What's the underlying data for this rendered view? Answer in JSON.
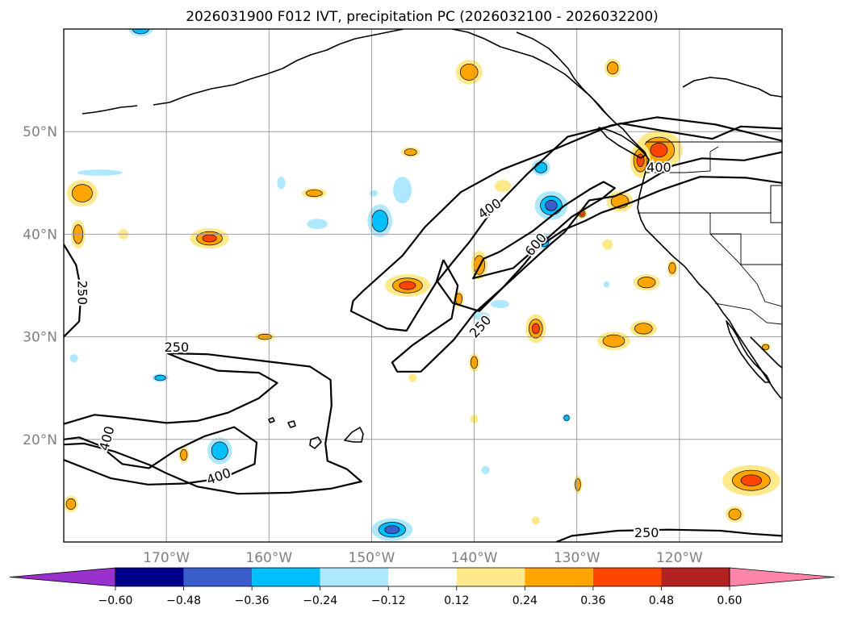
{
  "chart_data": {
    "type": "contour-map",
    "title": "2026031900 F012 IVT, precipitation PC (2026032100 - 2026032200)",
    "projection": "cylindrical",
    "lon_range": [
      -180,
      -110
    ],
    "lat_range": [
      10,
      60
    ],
    "lon_ticks": [
      -170,
      -160,
      -150,
      -140,
      -130,
      -120
    ],
    "lon_tick_labels": [
      "170°W",
      "160°W",
      "150°W",
      "140°W",
      "130°W",
      "120°W"
    ],
    "lat_ticks": [
      20,
      30,
      40,
      50
    ],
    "lat_tick_labels": [
      "20°N",
      "30°N",
      "40°N",
      "50°N"
    ],
    "grid": true,
    "ivt_contours": {
      "levels": [
        250,
        400,
        600
      ],
      "labels": [
        {
          "text": "250",
          "lon": -178.2,
          "lat": 34.3,
          "rot": 90
        },
        {
          "text": "250",
          "lon": -169.0,
          "lat": 29.0,
          "rot": 0
        },
        {
          "text": "400",
          "lon": -175.8,
          "lat": 20.1,
          "rot": -75
        },
        {
          "text": "400",
          "lon": -164.9,
          "lat": 16.4,
          "rot": -20
        },
        {
          "text": "400",
          "lon": -138.5,
          "lat": 42.5,
          "rot": -35
        },
        {
          "text": "600",
          "lon": -134.0,
          "lat": 39.0,
          "rot": -50
        },
        {
          "text": "250",
          "lon": -139.4,
          "lat": 31.0,
          "rot": -48
        },
        {
          "text": "400",
          "lon": -122.0,
          "lat": 46.5,
          "rot": 0
        },
        {
          "text": "250",
          "lon": -123.2,
          "lat": 10.9,
          "rot": 0
        }
      ],
      "lines": [
        {
          "level": 250,
          "points": [
            [
              -180,
              39
            ],
            [
              -178.8,
              37
            ],
            [
              -178.3,
              34.5
            ],
            [
              -178.5,
              31.5
            ],
            [
              -180,
              30
            ]
          ]
        },
        {
          "level": 250,
          "points": [
            [
              -169.9,
              28.4
            ],
            [
              -166,
              28.3
            ],
            [
              -161,
              27.7
            ],
            [
              -156,
              27.1
            ],
            [
              -154,
              25.8
            ],
            [
              -153.9,
              23.3
            ],
            [
              -154.5,
              19.6
            ],
            [
              -154.3,
              17.9
            ],
            [
              -152.4,
              17.1
            ],
            [
              -151,
              15.9
            ],
            [
              -154,
              15.2
            ],
            [
              -158,
              14.8
            ],
            [
              -163,
              14.7
            ],
            [
              -167,
              15.4
            ],
            [
              -170,
              16.7
            ],
            [
              -171.6,
              17.5
            ],
            [
              -175,
              18.8
            ],
            [
              -178,
              19.6
            ],
            [
              -180,
              19.5
            ]
          ]
        },
        {
          "level": 250,
          "points": [
            [
              -180,
              21.5
            ],
            [
              -177,
              22.4
            ],
            [
              -174,
              22.1
            ],
            [
              -170,
              21.6
            ],
            [
              -167,
              21.8
            ],
            [
              -164,
              22.6
            ],
            [
              -161,
              24.0
            ],
            [
              -159.2,
              25.5
            ],
            [
              -161,
              26.5
            ],
            [
              -165,
              26.7
            ],
            [
              -168.2,
              27.7
            ],
            [
              -169.9,
              28.4
            ]
          ]
        },
        {
          "level": 400,
          "points": [
            [
              -180,
              18.0
            ],
            [
              -175.4,
              16.2
            ],
            [
              -171.8,
              15.6
            ],
            [
              -168.2,
              15.7
            ],
            [
              -164.6,
              16.2
            ],
            [
              -161.4,
              17.6
            ],
            [
              -161.2,
              19.7
            ],
            [
              -163.4,
              21.2
            ],
            [
              -166.3,
              20.3
            ],
            [
              -169,
              19.0
            ],
            [
              -171.7,
              17.2
            ],
            [
              -174.3,
              17.6
            ],
            [
              -176.5,
              19.4
            ],
            [
              -178.5,
              20.2
            ],
            [
              -180,
              20.0
            ]
          ]
        },
        {
          "level": 250,
          "points": [
            [
              -143,
              37.5
            ],
            [
              -141.6,
              35.0
            ],
            [
              -142.2,
              31.8
            ],
            [
              -146,
              29.2
            ],
            [
              -148,
              27.5
            ],
            [
              -147.5,
              26.6
            ],
            [
              -145.2,
              26.6
            ],
            [
              -142,
              29.7
            ],
            [
              -140,
              32.3
            ],
            [
              -137.2,
              34.8
            ],
            [
              -134.8,
              37.0
            ],
            [
              -132.6,
              39.0
            ],
            [
              -131.2,
              40.2
            ],
            [
              -128.8,
              43.3
            ],
            [
              -126.3,
              43.7
            ],
            [
              -123.4,
              45.0
            ],
            [
              -120.6,
              46.7
            ],
            [
              -117.8,
              47.4
            ],
            [
              -113.7,
              47.2
            ],
            [
              -110,
              48.0
            ]
          ]
        },
        {
          "level": 250,
          "points": [
            [
              -110,
              49.1
            ],
            [
              -116.5,
              50.7
            ],
            [
              -122.2,
              51.4
            ],
            [
              -126.7,
              50.6
            ],
            [
              -131.9,
              48.4
            ],
            [
              -137.3,
              46.3
            ],
            [
              -141.3,
              44.1
            ],
            [
              -144.8,
              40.7
            ],
            [
              -147,
              37.9
            ],
            [
              -150.8,
              34.5
            ],
            [
              -151.8,
              33.5
            ],
            [
              -152,
              32.5
            ],
            [
              -150.2,
              31.6
            ],
            [
              -148.5,
              30.8
            ],
            [
              -146.6,
              30.6
            ],
            [
              -145.5,
              32.4
            ],
            [
              -143.7,
              35.3
            ],
            [
              -143,
              37.5
            ]
          ]
        },
        {
          "level": 400,
          "points": [
            [
              -143.6,
              35.4
            ],
            [
              -142.1,
              33.3
            ],
            [
              -139.5,
              32.5
            ],
            [
              -137.2,
              34.8
            ],
            [
              -135.2,
              37.0
            ],
            [
              -133.8,
              38.7
            ],
            [
              -131.3,
              40.4
            ],
            [
              -129.2,
              41.3
            ],
            [
              -127.6,
              42.1
            ],
            [
              -124.7,
              43.1
            ],
            [
              -121.8,
              44.3
            ],
            [
              -118,
              45.6
            ],
            [
              -113.5,
              45.5
            ],
            [
              -110,
              45.0
            ]
          ]
        },
        {
          "level": 400,
          "points": [
            [
              -110,
              50.3
            ],
            [
              -114,
              50.5
            ],
            [
              -116.8,
              49.3
            ],
            [
              -121.7,
              50.1
            ],
            [
              -125.7,
              50.8
            ],
            [
              -130.9,
              49.5
            ],
            [
              -134.9,
              45.8
            ],
            [
              -138.2,
              42.4
            ],
            [
              -140.5,
              39.2
            ],
            [
              -142,
              37.4
            ],
            [
              -143.6,
              35.4
            ]
          ]
        },
        {
          "level": 600,
          "points": [
            [
              -139.1,
              37.6
            ],
            [
              -140.1,
              35.7
            ],
            [
              -136.2,
              36.7
            ],
            [
              -133.1,
              39.4
            ],
            [
              -130.5,
              41.7
            ],
            [
              -127.5,
              43.5
            ],
            [
              -126.3,
              44.5
            ],
            [
              -127.4,
              45.1
            ],
            [
              -128.7,
              44.4
            ],
            [
              -131.2,
              42.8
            ],
            [
              -134.3,
              40.3
            ],
            [
              -137.5,
              38.3
            ],
            [
              -139.1,
              37.6
            ]
          ]
        },
        {
          "level": 250,
          "points": [
            [
              -132,
              10
            ],
            [
              -130.5,
              10.6
            ],
            [
              -126,
              11.1
            ],
            [
              -121,
              11.2
            ],
            [
              -116,
              11.1
            ],
            [
              -113,
              10.8
            ],
            [
              -110,
              10.6
            ]
          ]
        }
      ]
    },
    "precipitation_pc": {
      "colorbar": {
        "ticks": [
          "−0.60",
          "−0.48",
          "−0.36",
          "−0.24",
          "−0.12",
          "0.12",
          "0.24",
          "0.36",
          "0.48",
          "0.60"
        ],
        "tick_values": [
          -0.6,
          -0.48,
          -0.36,
          -0.24,
          -0.12,
          0.12,
          0.24,
          0.36,
          0.48,
          0.6
        ],
        "colors": [
          "#9932cc",
          "#00008b",
          "#3a5fcd",
          "#00bfff",
          "#ade8ff",
          "#ffffff",
          "#ffe98a",
          "#ffa500",
          "#ff4500",
          "#b22222",
          "#ff85a8"
        ],
        "extend": "both"
      },
      "positive_color_steps": [
        "#ffe98a",
        "#ffa500",
        "#ff4500"
      ],
      "negative_color_steps": [
        "#ade8ff",
        "#00bfff",
        "#3a5fcd"
      ],
      "blobs": [
        {
          "lon": -172.5,
          "lat": 60.0,
          "rx": 1.2,
          "ry": 0.7,
          "v": -0.26
        },
        {
          "lon": -126.5,
          "lat": 56.2,
          "rx": 0.8,
          "ry": 0.9,
          "v": 0.3
        },
        {
          "lon": -140.5,
          "lat": 55.8,
          "rx": 1.3,
          "ry": 1.2,
          "v": 0.3
        },
        {
          "lon": -122.0,
          "lat": 48.2,
          "rx": 2.3,
          "ry": 1.9,
          "v": 0.4
        },
        {
          "lon": -123.8,
          "lat": 47.2,
          "rx": 1.0,
          "ry": 1.7,
          "v": 0.37
        },
        {
          "lon": -146.2,
          "lat": 48.0,
          "rx": 0.9,
          "ry": 0.5,
          "v": 0.32
        },
        {
          "lon": -133.5,
          "lat": 46.5,
          "rx": 0.9,
          "ry": 0.8,
          "v": -0.3
        },
        {
          "lon": -147.0,
          "lat": 44.3,
          "rx": 0.9,
          "ry": 1.3,
          "v": -0.16
        },
        {
          "lon": -137.2,
          "lat": 44.7,
          "rx": 0.8,
          "ry": 0.6,
          "v": 0.22
        },
        {
          "lon": -132.5,
          "lat": 42.8,
          "rx": 1.6,
          "ry": 1.4,
          "v": -0.38
        },
        {
          "lon": -125.8,
          "lat": 43.2,
          "rx": 1.3,
          "ry": 1.0,
          "v": 0.3
        },
        {
          "lon": -178.2,
          "lat": 44.0,
          "rx": 1.5,
          "ry": 1.3,
          "v": 0.3
        },
        {
          "lon": -176.5,
          "lat": 46.0,
          "rx": 2.2,
          "ry": 0.3,
          "v": -0.18
        },
        {
          "lon": -158.8,
          "lat": 45.0,
          "rx": 0.4,
          "ry": 0.6,
          "v": -0.18
        },
        {
          "lon": -155.6,
          "lat": 44.0,
          "rx": 1.2,
          "ry": 0.5,
          "v": 0.3
        },
        {
          "lon": -149.2,
          "lat": 41.3,
          "rx": 1.2,
          "ry": 1.6,
          "v": -0.26
        },
        {
          "lon": -155.3,
          "lat": 41.0,
          "rx": 1.0,
          "ry": 0.5,
          "v": -0.2
        },
        {
          "lon": -149.8,
          "lat": 44.0,
          "rx": 0.4,
          "ry": 0.3,
          "v": -0.18
        },
        {
          "lon": -129.5,
          "lat": 42.0,
          "rx": 0.5,
          "ry": 0.5,
          "v": 0.36
        },
        {
          "lon": -178.6,
          "lat": 40.0,
          "rx": 0.7,
          "ry": 1.4,
          "v": 0.3
        },
        {
          "lon": -174.2,
          "lat": 40.0,
          "rx": 0.5,
          "ry": 0.5,
          "v": 0.2
        },
        {
          "lon": -165.8,
          "lat": 39.6,
          "rx": 1.9,
          "ry": 1.0,
          "v": 0.4
        },
        {
          "lon": -133.2,
          "lat": 39.3,
          "rx": 0.7,
          "ry": 0.8,
          "v": -0.24
        },
        {
          "lon": -127.0,
          "lat": 39.0,
          "rx": 0.5,
          "ry": 0.5,
          "v": 0.22
        },
        {
          "lon": -139.5,
          "lat": 37.0,
          "rx": 0.8,
          "ry": 1.4,
          "v": 0.3
        },
        {
          "lon": -146.5,
          "lat": 35.0,
          "rx": 2.2,
          "ry": 1.1,
          "v": 0.4
        },
        {
          "lon": -141.5,
          "lat": 33.7,
          "rx": 0.5,
          "ry": 0.8,
          "v": 0.3
        },
        {
          "lon": -137.5,
          "lat": 33.2,
          "rx": 0.9,
          "ry": 0.4,
          "v": -0.2
        },
        {
          "lon": -139.3,
          "lat": 32.0,
          "rx": 0.8,
          "ry": 0.4,
          "v": -0.18
        },
        {
          "lon": -123.2,
          "lat": 35.3,
          "rx": 1.3,
          "ry": 0.8,
          "v": 0.3
        },
        {
          "lon": -120.7,
          "lat": 36.7,
          "rx": 0.5,
          "ry": 0.8,
          "v": 0.3
        },
        {
          "lon": -127.1,
          "lat": 35.1,
          "rx": 0.3,
          "ry": 0.3,
          "v": -0.16
        },
        {
          "lon": -134.0,
          "lat": 30.8,
          "rx": 1.0,
          "ry": 1.4,
          "v": 0.4
        },
        {
          "lon": -123.5,
          "lat": 30.8,
          "rx": 1.3,
          "ry": 0.8,
          "v": 0.3
        },
        {
          "lon": -126.4,
          "lat": 29.6,
          "rx": 1.6,
          "ry": 0.9,
          "v": 0.3
        },
        {
          "lon": -111.6,
          "lat": 29.0,
          "rx": 0.5,
          "ry": 0.4,
          "v": 0.25
        },
        {
          "lon": -160.4,
          "lat": 30.0,
          "rx": 1.0,
          "ry": 0.4,
          "v": 0.3
        },
        {
          "lon": -179.0,
          "lat": 27.9,
          "rx": 0.4,
          "ry": 0.4,
          "v": -0.18
        },
        {
          "lon": -140.0,
          "lat": 27.5,
          "rx": 0.5,
          "ry": 0.9,
          "v": 0.3
        },
        {
          "lon": -146.0,
          "lat": 26.0,
          "rx": 0.4,
          "ry": 0.4,
          "v": 0.2
        },
        {
          "lon": -170.6,
          "lat": 26.0,
          "rx": 0.8,
          "ry": 0.4,
          "v": -0.24
        },
        {
          "lon": -140.0,
          "lat": 22.0,
          "rx": 0.4,
          "ry": 0.4,
          "v": 0.2
        },
        {
          "lon": -131.0,
          "lat": 22.1,
          "rx": 0.4,
          "ry": 0.4,
          "v": -0.24
        },
        {
          "lon": -164.8,
          "lat": 18.9,
          "rx": 1.2,
          "ry": 1.3,
          "v": -0.3
        },
        {
          "lon": -168.3,
          "lat": 18.5,
          "rx": 0.5,
          "ry": 0.8,
          "v": 0.3
        },
        {
          "lon": -138.9,
          "lat": 17.0,
          "rx": 0.4,
          "ry": 0.4,
          "v": -0.16
        },
        {
          "lon": -129.9,
          "lat": 15.6,
          "rx": 0.4,
          "ry": 0.9,
          "v": 0.3
        },
        {
          "lon": -113.0,
          "lat": 16.0,
          "rx": 2.8,
          "ry": 1.5,
          "v": 0.4
        },
        {
          "lon": -179.3,
          "lat": 13.7,
          "rx": 0.7,
          "ry": 0.8,
          "v": 0.3
        },
        {
          "lon": -114.6,
          "lat": 12.7,
          "rx": 0.9,
          "ry": 0.8,
          "v": 0.3
        },
        {
          "lon": -134.0,
          "lat": 12.1,
          "rx": 0.4,
          "ry": 0.4,
          "v": 0.2
        },
        {
          "lon": -148.0,
          "lat": 11.2,
          "rx": 2.0,
          "ry": 1.1,
          "v": -0.4
        }
      ]
    }
  }
}
